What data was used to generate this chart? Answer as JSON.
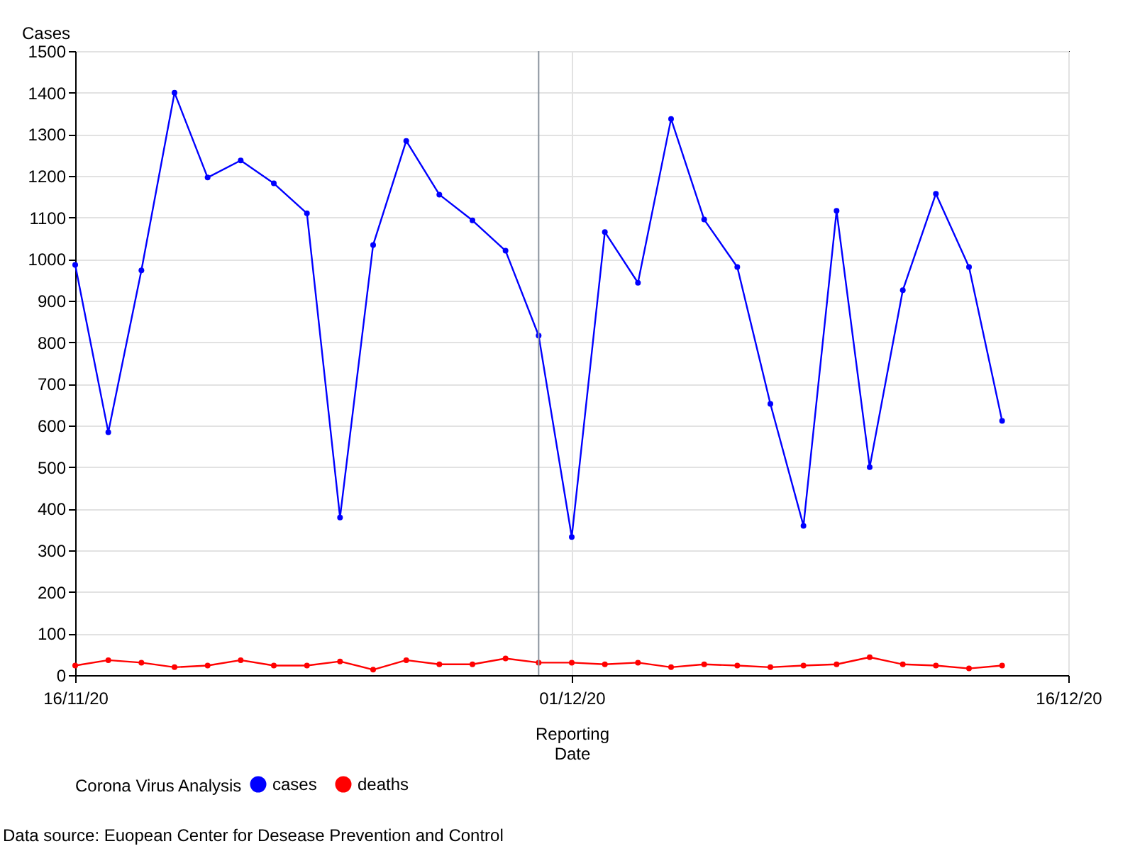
{
  "chart_data": {
    "type": "line",
    "ylabel": "Cases",
    "xlabel": "Reporting Date",
    "legend_title": "Corona Virus Analysis",
    "x": [
      "2020-11-16",
      "2020-11-17",
      "2020-11-18",
      "2020-11-19",
      "2020-11-20",
      "2020-11-21",
      "2020-11-22",
      "2020-11-23",
      "2020-11-24",
      "2020-11-25",
      "2020-11-26",
      "2020-11-27",
      "2020-11-28",
      "2020-11-29",
      "2020-11-30",
      "2020-12-01",
      "2020-12-02",
      "2020-12-03",
      "2020-12-04",
      "2020-12-05",
      "2020-12-06",
      "2020-12-07",
      "2020-12-08",
      "2020-12-09",
      "2020-12-10",
      "2020-12-11",
      "2020-12-12",
      "2020-12-13",
      "2020-12-14"
    ],
    "series": [
      {
        "name": "cases",
        "color": "#0000ff",
        "values": [
          986,
          584,
          973,
          1400,
          1196,
          1237,
          1182,
          1110,
          379,
          1034,
          1284,
          1155,
          1093,
          1020,
          816,
          332,
          1065,
          943,
          1337,
          1095,
          981,
          652,
          359,
          1116,
          500,
          925,
          1157,
          981,
          611
        ]
      },
      {
        "name": "deaths",
        "color": "#ff0000",
        "values": [
          23,
          36,
          30,
          19,
          23,
          36,
          23,
          23,
          33,
          13,
          36,
          26,
          26,
          40,
          30,
          30,
          26,
          30,
          19,
          26,
          23,
          19,
          23,
          26,
          43,
          26,
          23,
          16,
          23
        ]
      }
    ],
    "xlim": [
      "2020-11-16",
      "2020-12-16"
    ],
    "xticks": [
      {
        "value": "2020-11-16",
        "label": "16/11/20"
      },
      {
        "value": "2020-12-01",
        "label": "01/12/20"
      },
      {
        "value": "2020-12-16",
        "label": "16/12/20"
      }
    ],
    "ylim": [
      0,
      1500
    ],
    "yticks": [
      0,
      100,
      200,
      300,
      400,
      500,
      600,
      700,
      800,
      900,
      1000,
      1100,
      1200,
      1300,
      1400,
      1500
    ],
    "ref_lines": [
      {
        "axis": "x",
        "value": "2020-11-30",
        "color": "#8a949e"
      }
    ],
    "grid": true,
    "legend": "bottom",
    "marker": "circle",
    "line_style": "solid",
    "annotations": [
      "Data source: Euopean Center for Desease Prevention and Control"
    ]
  }
}
